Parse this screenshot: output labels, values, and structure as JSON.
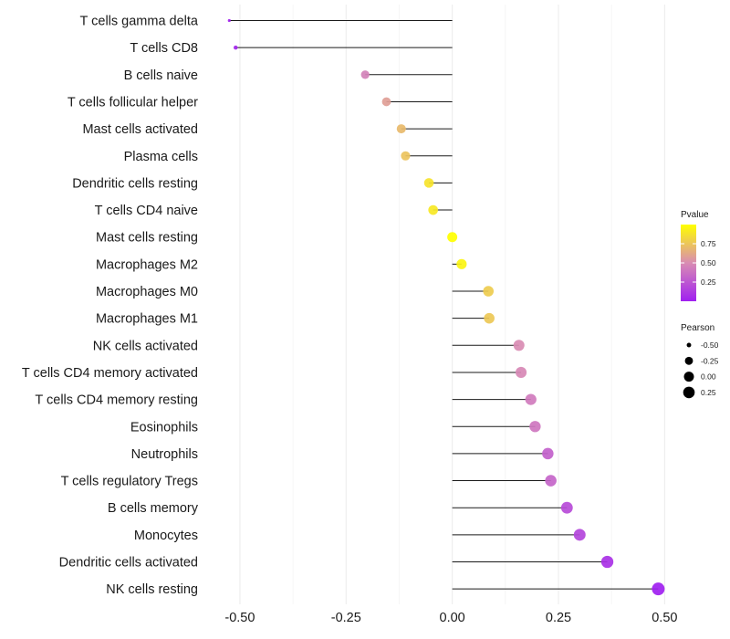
{
  "chart_data": {
    "type": "lollipop",
    "title": "",
    "xlabel": "",
    "ylabel": "",
    "xlim": [
      -0.575,
      0.525
    ],
    "x_ticks": [
      -0.5,
      -0.25,
      0.0,
      0.25,
      0.5
    ],
    "x_tick_labels": [
      "-0.50",
      "-0.25",
      "0.00",
      "0.25",
      "0.50"
    ],
    "categories": [
      "T cells gamma delta",
      "T cells CD8",
      "B cells naive",
      "T cells follicular helper",
      "Mast cells activated",
      "Plasma cells",
      "Dendritic cells resting",
      "T cells CD4 naive",
      "Mast cells resting",
      "Macrophages M2",
      "Macrophages M0",
      "Macrophages M1",
      "NK cells activated",
      "T cells CD4 memory activated",
      "T cells CD4 memory resting",
      "Eosinophils",
      "Neutrophils",
      "T cells regulatory  Tregs ",
      "B cells memory",
      "Monocytes",
      "Dendritic cells activated",
      "NK cells resting"
    ],
    "pearson": [
      -0.525,
      -0.51,
      -0.205,
      -0.155,
      -0.12,
      -0.11,
      -0.055,
      -0.045,
      0.0,
      0.022,
      0.085,
      0.087,
      0.157,
      0.162,
      0.185,
      0.195,
      0.225,
      0.232,
      0.27,
      0.3,
      0.365,
      0.485
    ],
    "pvalue": [
      0.02,
      0.03,
      0.45,
      0.58,
      0.7,
      0.74,
      0.88,
      0.9,
      1.0,
      0.95,
      0.78,
      0.76,
      0.5,
      0.48,
      0.42,
      0.4,
      0.3,
      0.32,
      0.2,
      0.17,
      0.08,
      0.001
    ],
    "legend": {
      "color_title": "Pvalue",
      "color_ticks": [
        0.25,
        0.5,
        0.75
      ],
      "color_tick_labels": [
        "0.25",
        "0.50",
        "0.75"
      ],
      "color_low": "#a020f0",
      "color_mid": "#d98cb3",
      "color_high": "#ffff00",
      "size_title": "Pearson",
      "size_ticks": [
        -0.5,
        -0.25,
        0.0,
        0.25
      ],
      "size_tick_labels": [
        "-0.50",
        "-0.25",
        "0.00",
        "0.25"
      ],
      "placement": "right"
    }
  }
}
